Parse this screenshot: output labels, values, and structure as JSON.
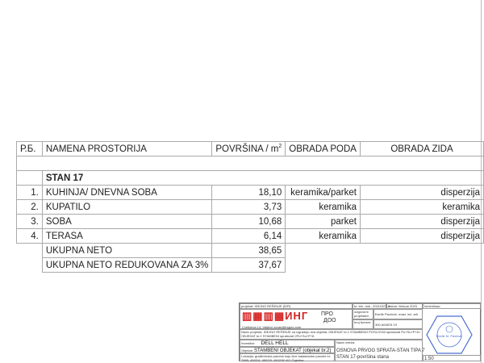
{
  "table": {
    "headers": {
      "rb": "Р.Б.",
      "name": "NAMENA PROSTORIJA",
      "area": "POVRŠINA / m",
      "area_sup": "2",
      "floor": "OBRADA PODA",
      "wall": "OBRADA ZIDA"
    },
    "section": "STAN 17",
    "rows": [
      {
        "no": "1.",
        "name": "KUHINJA/ DNEVNA SOBA",
        "area": "18,10",
        "floor": "keramika/parket",
        "wall": "disperzija"
      },
      {
        "no": "2.",
        "name": "KUPATILO",
        "area": "3,73",
        "floor": "keramika",
        "wall": "keramika"
      },
      {
        "no": "3.",
        "name": "SOBA",
        "area": "10,68",
        "floor": "parket",
        "wall": "disperzija"
      },
      {
        "no": "4.",
        "name": "TERASA",
        "area": "6,14",
        "floor": "keramika",
        "wall": "disperzija"
      }
    ],
    "totals": [
      {
        "label": "UKUPNA NETO",
        "value": "38,65"
      },
      {
        "label": "UKUPNA NETO REDUKOVANA ZA 3%",
        "value": "37,67"
      }
    ]
  },
  "title_block": {
    "project_label": "projekat:",
    "project": "IDEJNO REŠENJE (IDR)",
    "tech_no": "br. teh. dok.: 20211027-1",
    "date": "datum: februar 2023",
    "checked": "kontrolisao:",
    "logo": "ИНГ",
    "logo_sub1": "ПРО",
    "logo_sub2": "ДОО",
    "address": "Cvetićeva 14, Valjevo   zoran@ingpro.com",
    "designer_label": "odgovorni projektant:",
    "designer": "Đorđe Pavlović, mast. inž. arh.",
    "license_label": "broj licence:",
    "license": "300 A00876 19",
    "naziv_label": "Naziv projekta:",
    "naziv": "IDEJNO REŠENJE za izgradnju dva objekta: OBJEKAT br.1 STAMBENO POSLOVNI spratnosti Po+Su+P+8 i OBJEKAT br.2 STAMBENI spratnosti 2Po+Su+P+8",
    "investor_label": "Investitor:",
    "investor": "DELL HELL",
    "object_label": "Objekat:",
    "object": "STAMBENI OBJEKAT (objekat br.2)",
    "location_label": "Lokacija:",
    "location": "građevinska parcela koju čine katastarske parcele br. 7665, 4502/4, 4502/5, 4502/30 KO Čajetina",
    "sheet_label": "Naziv crteža:",
    "sheet1": "OSNOVA PRVOG SPRATA-STAN TIPA 7",
    "sheet2": "STAN 17-površina stana",
    "scale": "1:50",
    "stamp_text": "Đorđe M. Pavlović"
  },
  "colors": {
    "logo": "#d62020",
    "stamp": "#4a6fd0"
  }
}
